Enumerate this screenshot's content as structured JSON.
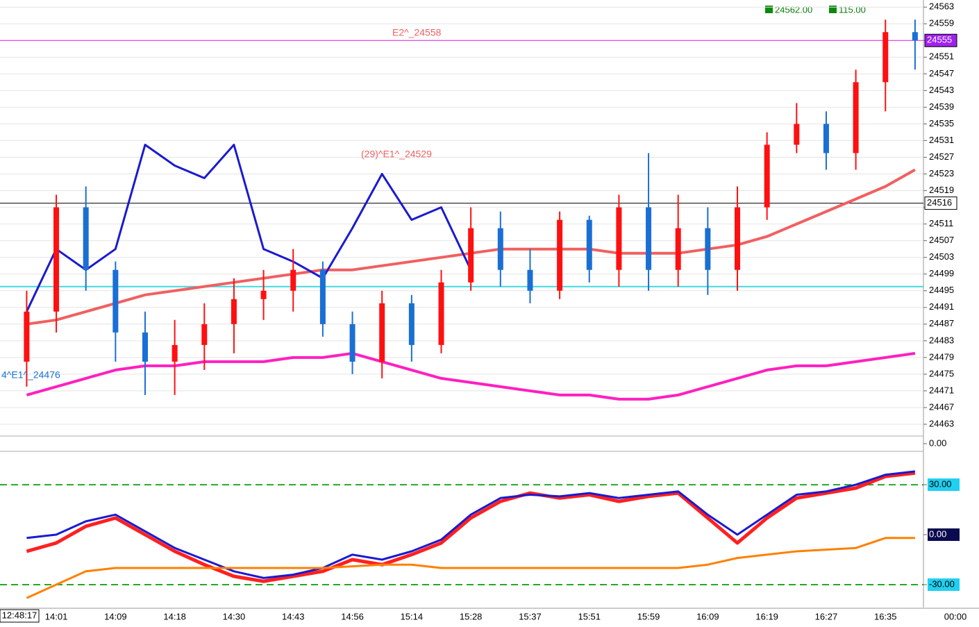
{
  "header": {
    "last_price": "24562.00",
    "change": "115.00",
    "clock": "12:48:17",
    "end_time": "00:00"
  },
  "chart_data": [
    {
      "type": "candlestick",
      "categories": [
        null,
        "14:01",
        null,
        "14:09",
        null,
        "14:18",
        null,
        "14:30",
        null,
        "14:43",
        null,
        "14:56",
        null,
        "15:14",
        null,
        "15:28",
        null,
        "15:37",
        null,
        "15:51",
        null,
        "15:59",
        null,
        "16:09",
        null,
        "16:19",
        null,
        "16:27",
        null,
        "16:35",
        null
      ],
      "open": [
        24478,
        24490,
        24515,
        24500,
        24485,
        24478,
        24482,
        24487,
        24493,
        24495,
        24500,
        24487,
        24478,
        24492,
        24482,
        24497,
        24510,
        24500,
        24495,
        24512,
        24500,
        24515,
        24500,
        24510,
        24500,
        24515,
        24530,
        24535,
        24528,
        24545,
        24557
      ],
      "high": [
        24495,
        24518,
        24520,
        24502,
        24490,
        24488,
        24492,
        24498,
        24500,
        24505,
        24502,
        24490,
        24495,
        24494,
        24500,
        24515,
        24514,
        24505,
        24514,
        24513,
        24518,
        24528,
        24518,
        24515,
        24520,
        24533,
        24540,
        24538,
        24548,
        24560,
        24560
      ],
      "low": [
        24472,
        24485,
        24495,
        24478,
        24470,
        24470,
        24476,
        24480,
        24488,
        24490,
        24484,
        24475,
        24474,
        24478,
        24480,
        24495,
        24496,
        24492,
        24493,
        24497,
        24496,
        24495,
        24496,
        24494,
        24495,
        24512,
        24528,
        24524,
        24524,
        24538,
        24548
      ],
      "close": [
        24490,
        24515,
        24500,
        24485,
        24478,
        24482,
        24487,
        24493,
        24495,
        24500,
        24487,
        24478,
        24492,
        24482,
        24497,
        24510,
        24500,
        24495,
        24512,
        24500,
        24515,
        24500,
        24510,
        24500,
        24515,
        24530,
        24535,
        24528,
        24545,
        24557,
        24555
      ],
      "up_color": "#ff1010",
      "down_color": "#1a6fd4",
      "lines": [
        {
          "color": "#f06060",
          "width": 4,
          "values": [
            24487,
            24488,
            24490,
            24492,
            24494,
            24495,
            24496,
            24497,
            24498,
            24499,
            24500,
            24500,
            24501,
            24502,
            24503,
            24504,
            24505,
            24505,
            24505,
            24505,
            24504,
            24504,
            24504,
            24505,
            24506,
            24508,
            24511,
            24514,
            24517,
            24520,
            24524
          ]
        },
        {
          "color": "#1a1ad0",
          "width": 3,
          "values": [
            24490,
            24505,
            24500,
            24505,
            24530,
            24525,
            24522,
            24530,
            24505,
            24502,
            24498,
            24510,
            24523,
            24512,
            24515,
            24500,
            null,
            null,
            null,
            null,
            null,
            null,
            null,
            null,
            null,
            null,
            null,
            null,
            null,
            null,
            null
          ]
        },
        {
          "color": "#ff20c0",
          "width": 4,
          "values": [
            24470,
            24472,
            24474,
            24476,
            24477,
            24477,
            24478,
            24478,
            24478,
            24479,
            24479,
            24480,
            24478,
            24476,
            24474,
            24473,
            24472,
            24471,
            24470,
            24470,
            24469,
            24469,
            24470,
            24472,
            24474,
            24476,
            24477,
            24477,
            24478,
            24479,
            24480
          ]
        }
      ],
      "price_lines": [
        {
          "value": 24555,
          "color": "#e020e0",
          "tag_fill": "#a020f0",
          "tag_text": "#ffffff"
        },
        {
          "value": 24516,
          "color": "#000000",
          "tag_fill": "#ffffff",
          "tag_text": "#000000"
        }
      ],
      "level_line": {
        "value": 24496,
        "color": "#40d8e0"
      },
      "annotations": [
        "E2^_24558",
        "(29)^E1^_24529",
        "4^E1^_24476"
      ],
      "ylim": [
        24461.5,
        24564.7
      ],
      "yticks": [
        24563,
        24559,
        24555,
        24551,
        24547,
        24543,
        24539,
        24535,
        24531,
        24527,
        24523,
        24519,
        24515,
        24511,
        24507,
        24503,
        24499,
        24495,
        24491,
        24487,
        24483,
        24479,
        24475,
        24471,
        24467,
        24463
      ],
      "grid": true
    },
    {
      "type": "strip",
      "ylim": [
        -1,
        1
      ],
      "yticks": [
        {
          "value": 0,
          "label": "0.00"
        }
      ]
    },
    {
      "type": "oscillator",
      "lines": [
        {
          "color": "#ff2020",
          "width": 5,
          "values": [
            -10,
            -5,
            5,
            10,
            0,
            -10,
            -18,
            -25,
            -28,
            -25,
            -22,
            -15,
            -18,
            -12,
            -5,
            10,
            20,
            25,
            22,
            24,
            20,
            23,
            25,
            10,
            -5,
            10,
            22,
            25,
            28,
            35,
            37
          ]
        },
        {
          "color": "#1a1ad0",
          "width": 3,
          "values": [
            -2,
            0,
            8,
            12,
            2,
            -8,
            -15,
            -22,
            -26,
            -24,
            -20,
            -12,
            -15,
            -10,
            -3,
            12,
            22,
            24,
            23,
            25,
            22,
            24,
            26,
            12,
            0,
            12,
            24,
            26,
            30,
            36,
            38
          ]
        },
        {
          "color": "#ff8000",
          "width": 3,
          "values": [
            -38,
            -30,
            -22,
            -20,
            -20,
            -20,
            -20,
            -20,
            -20,
            -20,
            -20,
            -19,
            -18,
            -18,
            -20,
            -20,
            -20,
            -20,
            -20,
            -20,
            -20,
            -20,
            -20,
            -18,
            -14,
            -12,
            -10,
            -9,
            -8,
            -2,
            -2
          ]
        }
      ],
      "bands": [
        {
          "value": 30,
          "color": "#22aa22"
        },
        {
          "value": -30,
          "color": "#22aa22"
        }
      ],
      "ylim": [
        -43.75,
        49.2
      ],
      "yticks": [
        {
          "value": 30,
          "label": "30.00"
        },
        {
          "value": 0,
          "label": "0.00"
        },
        {
          "value": -30,
          "label": "-30.00"
        }
      ]
    }
  ]
}
